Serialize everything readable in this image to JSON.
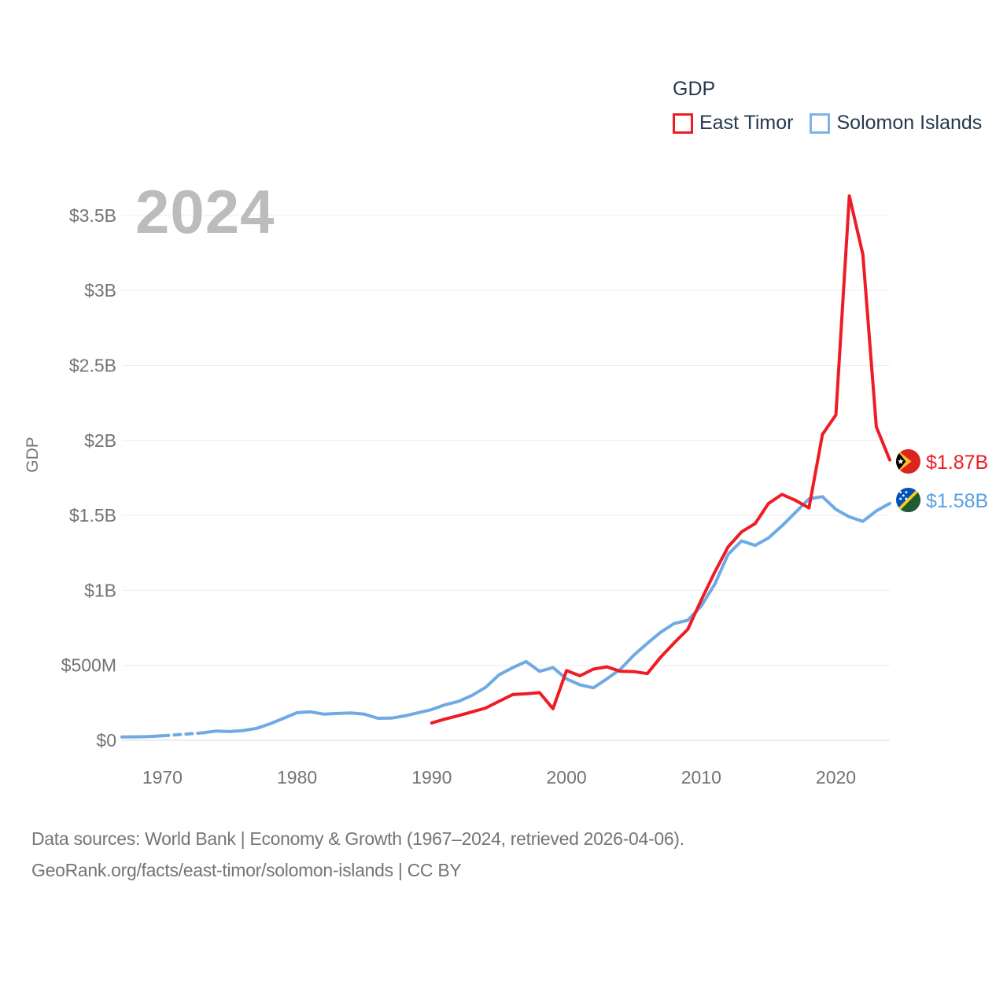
{
  "watermark": "2024",
  "legend": {
    "title": "GDP",
    "items": [
      {
        "label": "East Timor",
        "color": "#ee1c25"
      },
      {
        "label": "Solomon Islands",
        "color": "#7cb3e8"
      }
    ]
  },
  "end_labels": [
    {
      "series": "East Timor",
      "label": "$1.87B",
      "color": "#ee1c25",
      "flag": "east-timor-flag"
    },
    {
      "series": "Solomon Islands",
      "label": "$1.58B",
      "color": "#58a0e3",
      "flag": "solomon-islands-flag"
    }
  ],
  "footer": {
    "line1": "Data sources: World Bank | Economy & Growth (1967–2024, retrieved 2026-04-06).",
    "line2": "GeoRank.org/facts/east-timor/solomon-islands | CC BY"
  },
  "chart_data": {
    "type": "line",
    "title": "GDP",
    "xlabel": "",
    "ylabel": "GDP",
    "grid": true,
    "legend_position": "top-right",
    "x_range": [
      1967,
      2024
    ],
    "y_range_musd": [
      0,
      3750
    ],
    "x_ticks": [
      {
        "label": "1970",
        "year": 1970
      },
      {
        "label": "1980",
        "year": 1980
      },
      {
        "label": "1990",
        "year": 1990
      },
      {
        "label": "2000",
        "year": 2000
      },
      {
        "label": "2010",
        "year": 2010
      },
      {
        "label": "2020",
        "year": 2020
      }
    ],
    "y_ticks": [
      {
        "label": "$0",
        "value": 0
      },
      {
        "label": "$500M",
        "value": 500
      },
      {
        "label": "$1B",
        "value": 1000
      },
      {
        "label": "$1.5B",
        "value": 1500
      },
      {
        "label": "$2B",
        "value": 2000
      },
      {
        "label": "$2.5B",
        "value": 2500
      },
      {
        "label": "$3B",
        "value": 3000
      },
      {
        "label": "$3.5B",
        "value": 3500
      }
    ],
    "series": [
      {
        "name": "East Timor",
        "color": "#ee1c25",
        "end_label": "$1.87B",
        "years": [
          1990,
          1991,
          1992,
          1993,
          1994,
          1995,
          1996,
          1997,
          1998,
          1999,
          2000,
          2001,
          2002,
          2003,
          2004,
          2005,
          2006,
          2007,
          2008,
          2009,
          2010,
          2011,
          2012,
          2013,
          2014,
          2015,
          2016,
          2017,
          2018,
          2019,
          2020,
          2021,
          2022,
          2023,
          2024
        ],
        "values_musd": [
          116,
          142,
          165,
          190,
          215,
          260,
          305,
          310,
          318,
          211,
          465,
          430,
          475,
          490,
          460,
          458,
          445,
          555,
          650,
          740,
          935,
          1120,
          1290,
          1390,
          1445,
          1580,
          1640,
          1600,
          1550,
          2040,
          2170,
          3630,
          3240,
          2090,
          1870
        ]
      },
      {
        "name": "Solomon Islands",
        "color": "#6faae4",
        "end_label": "$1.58B",
        "years": [
          1967,
          1968,
          1969,
          1970,
          1971,
          1972,
          1973,
          1974,
          1975,
          1976,
          1977,
          1978,
          1979,
          1980,
          1981,
          1982,
          1983,
          1984,
          1985,
          1986,
          1987,
          1988,
          1989,
          1990,
          1991,
          1992,
          1993,
          1994,
          1995,
          1996,
          1997,
          1998,
          1999,
          2000,
          2001,
          2002,
          2003,
          2004,
          2005,
          2006,
          2007,
          2008,
          2009,
          2010,
          2011,
          2012,
          2013,
          2014,
          2015,
          2016,
          2017,
          2018,
          2019,
          2020,
          2021,
          2022,
          2023,
          2024
        ],
        "values_musd": [
          22,
          23,
          25,
          30,
          null,
          null,
          50,
          62,
          58,
          65,
          80,
          110,
          147,
          184,
          190,
          174,
          179,
          182,
          174,
          147,
          148,
          163,
          184,
          205,
          237,
          260,
          300,
          353,
          437,
          484,
          525,
          460,
          485,
          410,
          370,
          350,
          410,
          474,
          568,
          647,
          721,
          779,
          800,
          895,
          1040,
          1240,
          1330,
          1300,
          1350,
          1430,
          1520,
          1610,
          1625,
          1540,
          1490,
          1460,
          1530,
          1580
        ]
      }
    ]
  }
}
